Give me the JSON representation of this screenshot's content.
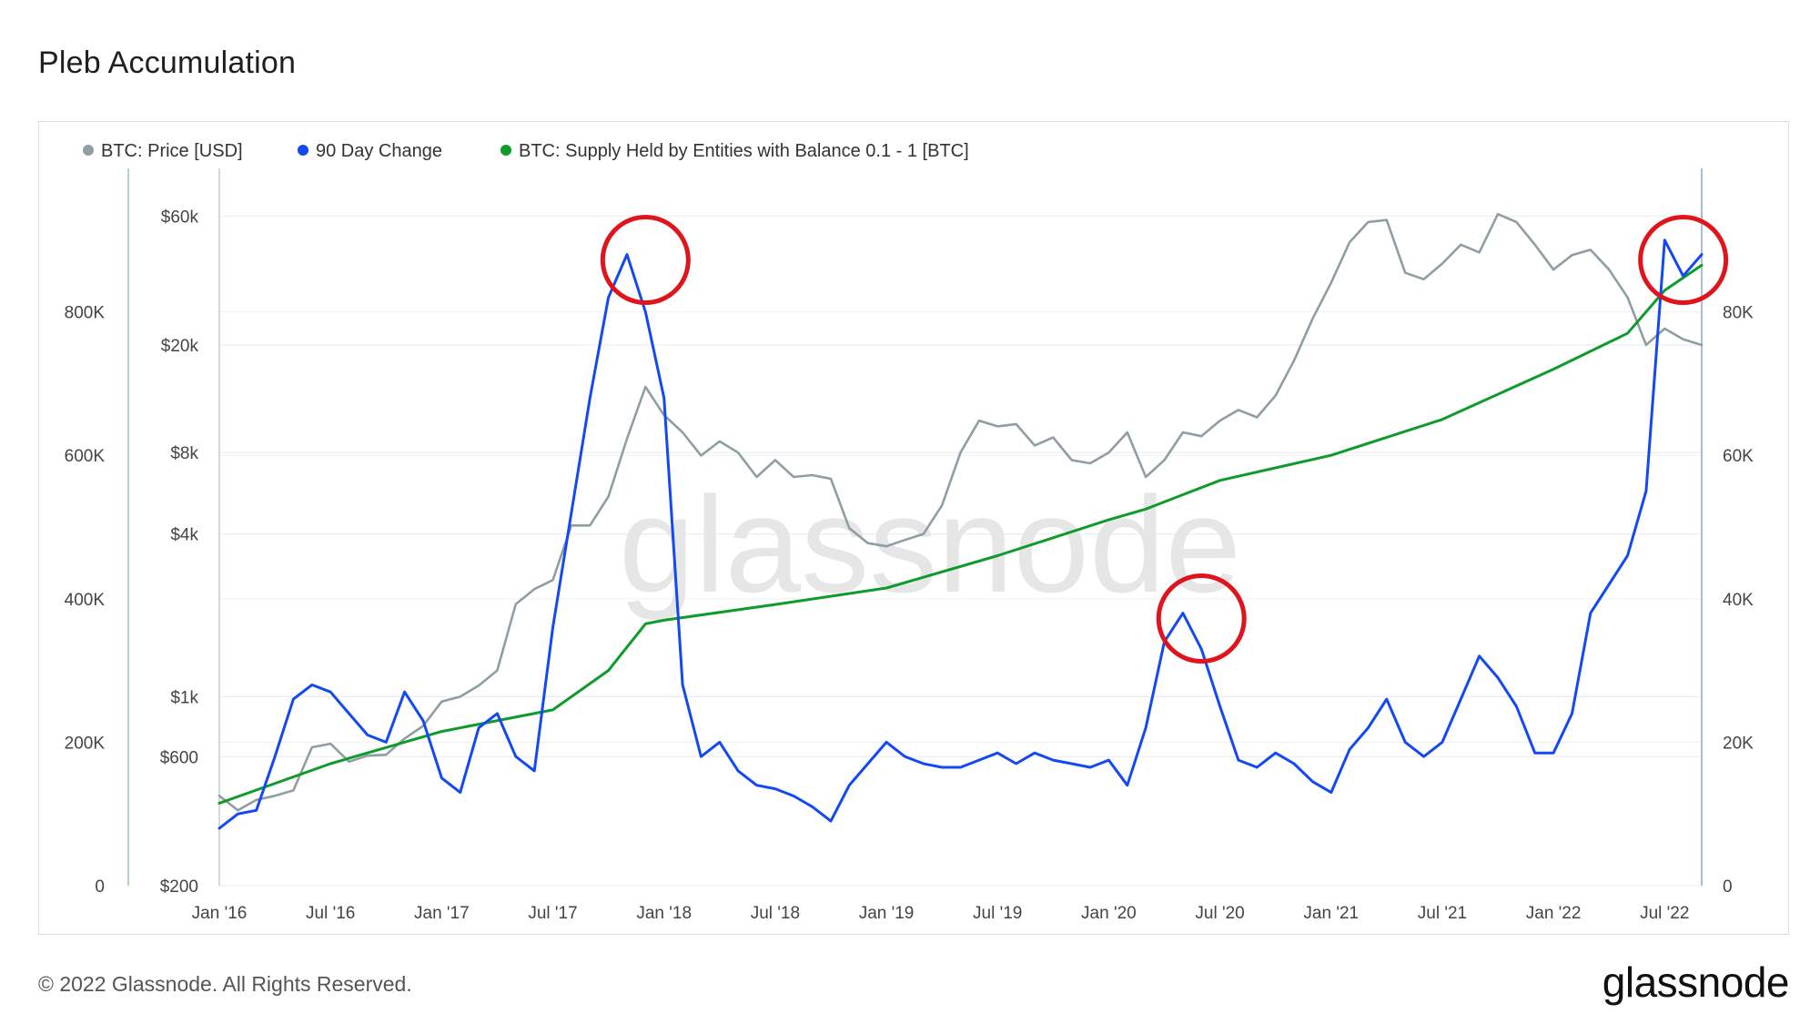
{
  "page": {
    "title": "Pleb Accumulation",
    "copyright": "© 2022 Glassnode. All Rights Reserved.",
    "logo": "glassnode",
    "watermark": "glassnode"
  },
  "colors": {
    "price": "#8f9ea3",
    "change": "#1349f2",
    "supply": "#0f9b2c",
    "circle": "#e0141c"
  },
  "chart_data": {
    "type": "line",
    "title": "Pleb Accumulation",
    "legend_placement": "top-left",
    "grid": true,
    "x_tick_labels": [
      "Jan '16",
      "Jul '16",
      "Jan '17",
      "Jul '17",
      "Jan '18",
      "Jul '18",
      "Jan '19",
      "Jul '19",
      "Jan '20",
      "Jul '20",
      "Jan '21",
      "Jul '21",
      "Jan '22",
      "Jul '22"
    ],
    "x_tick_dates": [
      "2016-01",
      "2016-07",
      "2017-01",
      "2017-07",
      "2018-01",
      "2018-07",
      "2019-01",
      "2019-07",
      "2020-01",
      "2020-07",
      "2021-01",
      "2021-07",
      "2022-01",
      "2022-07"
    ],
    "x_range": [
      "2016-01",
      "2022-09"
    ],
    "axes": {
      "left_outer": {
        "series": "BTC: Supply Held by Entities with Balance 0.1 - 1 [BTC]",
        "range": [
          0,
          1000000
        ],
        "ticks": [
          0,
          200000,
          400000,
          600000,
          800000
        ],
        "tick_labels": [
          "0",
          "200K",
          "400K",
          "600K",
          "800K"
        ]
      },
      "left_inner": {
        "series": "BTC: Price [USD]",
        "scale": "log",
        "range": [
          200,
          90000
        ],
        "ticks": [
          200,
          600,
          1000,
          4000,
          8000,
          20000,
          60000
        ],
        "tick_labels": [
          "$200",
          "$600",
          "$1k",
          "$4k",
          "$8k",
          "$20k",
          "$60k"
        ]
      },
      "right": {
        "series": "90 Day Change",
        "range": [
          0,
          100000
        ],
        "ticks": [
          0,
          20000,
          40000,
          60000,
          80000
        ],
        "tick_labels": [
          "0",
          "20K",
          "40K",
          "60K",
          "80K"
        ]
      }
    },
    "series": [
      {
        "name": "BTC: Price [USD]",
        "axis": "left_inner",
        "color": "#8f9ea3",
        "x": [
          "2016-01",
          "2016-02",
          "2016-03",
          "2016-04",
          "2016-05",
          "2016-06",
          "2016-07",
          "2016-08",
          "2016-09",
          "2016-10",
          "2016-11",
          "2016-12",
          "2017-01",
          "2017-02",
          "2017-03",
          "2017-04",
          "2017-05",
          "2017-06",
          "2017-07",
          "2017-08",
          "2017-09",
          "2017-10",
          "2017-11",
          "2017-12",
          "2018-01",
          "2018-02",
          "2018-03",
          "2018-04",
          "2018-05",
          "2018-06",
          "2018-07",
          "2018-08",
          "2018-09",
          "2018-10",
          "2018-11",
          "2018-12",
          "2019-01",
          "2019-02",
          "2019-03",
          "2019-04",
          "2019-05",
          "2019-06",
          "2019-07",
          "2019-08",
          "2019-09",
          "2019-10",
          "2019-11",
          "2019-12",
          "2020-01",
          "2020-02",
          "2020-03",
          "2020-04",
          "2020-05",
          "2020-06",
          "2020-07",
          "2020-08",
          "2020-09",
          "2020-10",
          "2020-11",
          "2020-12",
          "2021-01",
          "2021-02",
          "2021-03",
          "2021-04",
          "2021-05",
          "2021-06",
          "2021-07",
          "2021-08",
          "2021-09",
          "2021-10",
          "2021-11",
          "2021-12",
          "2022-01",
          "2022-02",
          "2022-03",
          "2022-04",
          "2022-05",
          "2022-06",
          "2022-07",
          "2022-08",
          "2022-09"
        ],
        "values": [
          430,
          380,
          415,
          430,
          450,
          650,
          670,
          575,
          605,
          610,
          700,
          780,
          960,
          1000,
          1100,
          1250,
          2200,
          2500,
          2700,
          4300,
          4300,
          5500,
          9000,
          14000,
          11000,
          9500,
          7800,
          8800,
          8000,
          6500,
          7500,
          6500,
          6600,
          6400,
          4200,
          3700,
          3600,
          3800,
          4000,
          5100,
          8000,
          10500,
          10000,
          10200,
          8500,
          9100,
          7500,
          7300,
          8000,
          9500,
          6500,
          7500,
          9500,
          9200,
          10500,
          11500,
          10800,
          13000,
          17500,
          25000,
          34000,
          48000,
          57000,
          58000,
          37000,
          35000,
          40000,
          47000,
          44000,
          61000,
          57000,
          47000,
          38000,
          43000,
          45000,
          38000,
          30000,
          20000,
          23000,
          21000,
          20000
        ]
      },
      {
        "name": "90 Day Change",
        "axis": "right",
        "color": "#1349f2",
        "x": [
          "2016-01",
          "2016-02",
          "2016-03",
          "2016-04",
          "2016-05",
          "2016-06",
          "2016-07",
          "2016-08",
          "2016-09",
          "2016-10",
          "2016-11",
          "2016-12",
          "2017-01",
          "2017-02",
          "2017-03",
          "2017-04",
          "2017-05",
          "2017-06",
          "2017-07",
          "2017-08",
          "2017-09",
          "2017-10",
          "2017-11",
          "2017-12",
          "2018-01",
          "2018-02",
          "2018-03",
          "2018-04",
          "2018-05",
          "2018-06",
          "2018-07",
          "2018-08",
          "2018-09",
          "2018-10",
          "2018-11",
          "2018-12",
          "2019-01",
          "2019-02",
          "2019-03",
          "2019-04",
          "2019-05",
          "2019-06",
          "2019-07",
          "2019-08",
          "2019-09",
          "2019-10",
          "2019-11",
          "2019-12",
          "2020-01",
          "2020-02",
          "2020-03",
          "2020-04",
          "2020-05",
          "2020-06",
          "2020-07",
          "2020-08",
          "2020-09",
          "2020-10",
          "2020-11",
          "2020-12",
          "2021-01",
          "2021-02",
          "2021-03",
          "2021-04",
          "2021-05",
          "2021-06",
          "2021-07",
          "2021-08",
          "2021-09",
          "2021-10",
          "2021-11",
          "2021-12",
          "2022-01",
          "2022-02",
          "2022-03",
          "2022-04",
          "2022-05",
          "2022-06",
          "2022-07",
          "2022-08",
          "2022-09"
        ],
        "values": [
          8000,
          10000,
          10500,
          18000,
          26000,
          28000,
          27000,
          24000,
          21000,
          20000,
          27000,
          23000,
          15000,
          13000,
          22000,
          24000,
          18000,
          16000,
          36000,
          52000,
          68000,
          82000,
          88000,
          80000,
          68000,
          28000,
          18000,
          20000,
          16000,
          14000,
          13500,
          12500,
          11000,
          9000,
          14000,
          17000,
          20000,
          18000,
          17000,
          16500,
          16500,
          17500,
          18500,
          17000,
          18500,
          17500,
          17000,
          16500,
          17500,
          14000,
          22000,
          34000,
          38000,
          33000,
          25000,
          17500,
          16500,
          18500,
          17000,
          14500,
          13000,
          19000,
          22000,
          26000,
          20000,
          18000,
          20000,
          26000,
          32000,
          29000,
          25000,
          18500,
          18500,
          24000,
          38000,
          42000,
          46000,
          55000,
          90000,
          85000,
          88000
        ]
      },
      {
        "name": "BTC: Supply Held by Entities with Balance 0.1 - 1 [BTC]",
        "axis": "left_outer",
        "color": "#0f9b2c",
        "x": [
          "2016-01",
          "2016-07",
          "2017-01",
          "2017-07",
          "2017-10",
          "2017-12",
          "2018-01",
          "2018-07",
          "2019-01",
          "2019-07",
          "2020-01",
          "2020-03",
          "2020-05",
          "2020-07",
          "2021-01",
          "2021-07",
          "2022-01",
          "2022-05",
          "2022-07",
          "2022-09"
        ],
        "values": [
          115000,
          170000,
          215000,
          245000,
          300000,
          365000,
          370000,
          392000,
          415000,
          460000,
          510000,
          525000,
          545000,
          565000,
          600000,
          650000,
          720000,
          770000,
          830000,
          865000
        ]
      }
    ],
    "annotations": [
      {
        "type": "circle",
        "x": "2017-12",
        "series": "90 Day Change",
        "value": 88000
      },
      {
        "type": "circle",
        "x": "2020-06",
        "series": "90 Day Change",
        "value": 38000
      },
      {
        "type": "circle",
        "x": "2022-08",
        "series": "90 Day Change",
        "value": 88000
      }
    ]
  }
}
